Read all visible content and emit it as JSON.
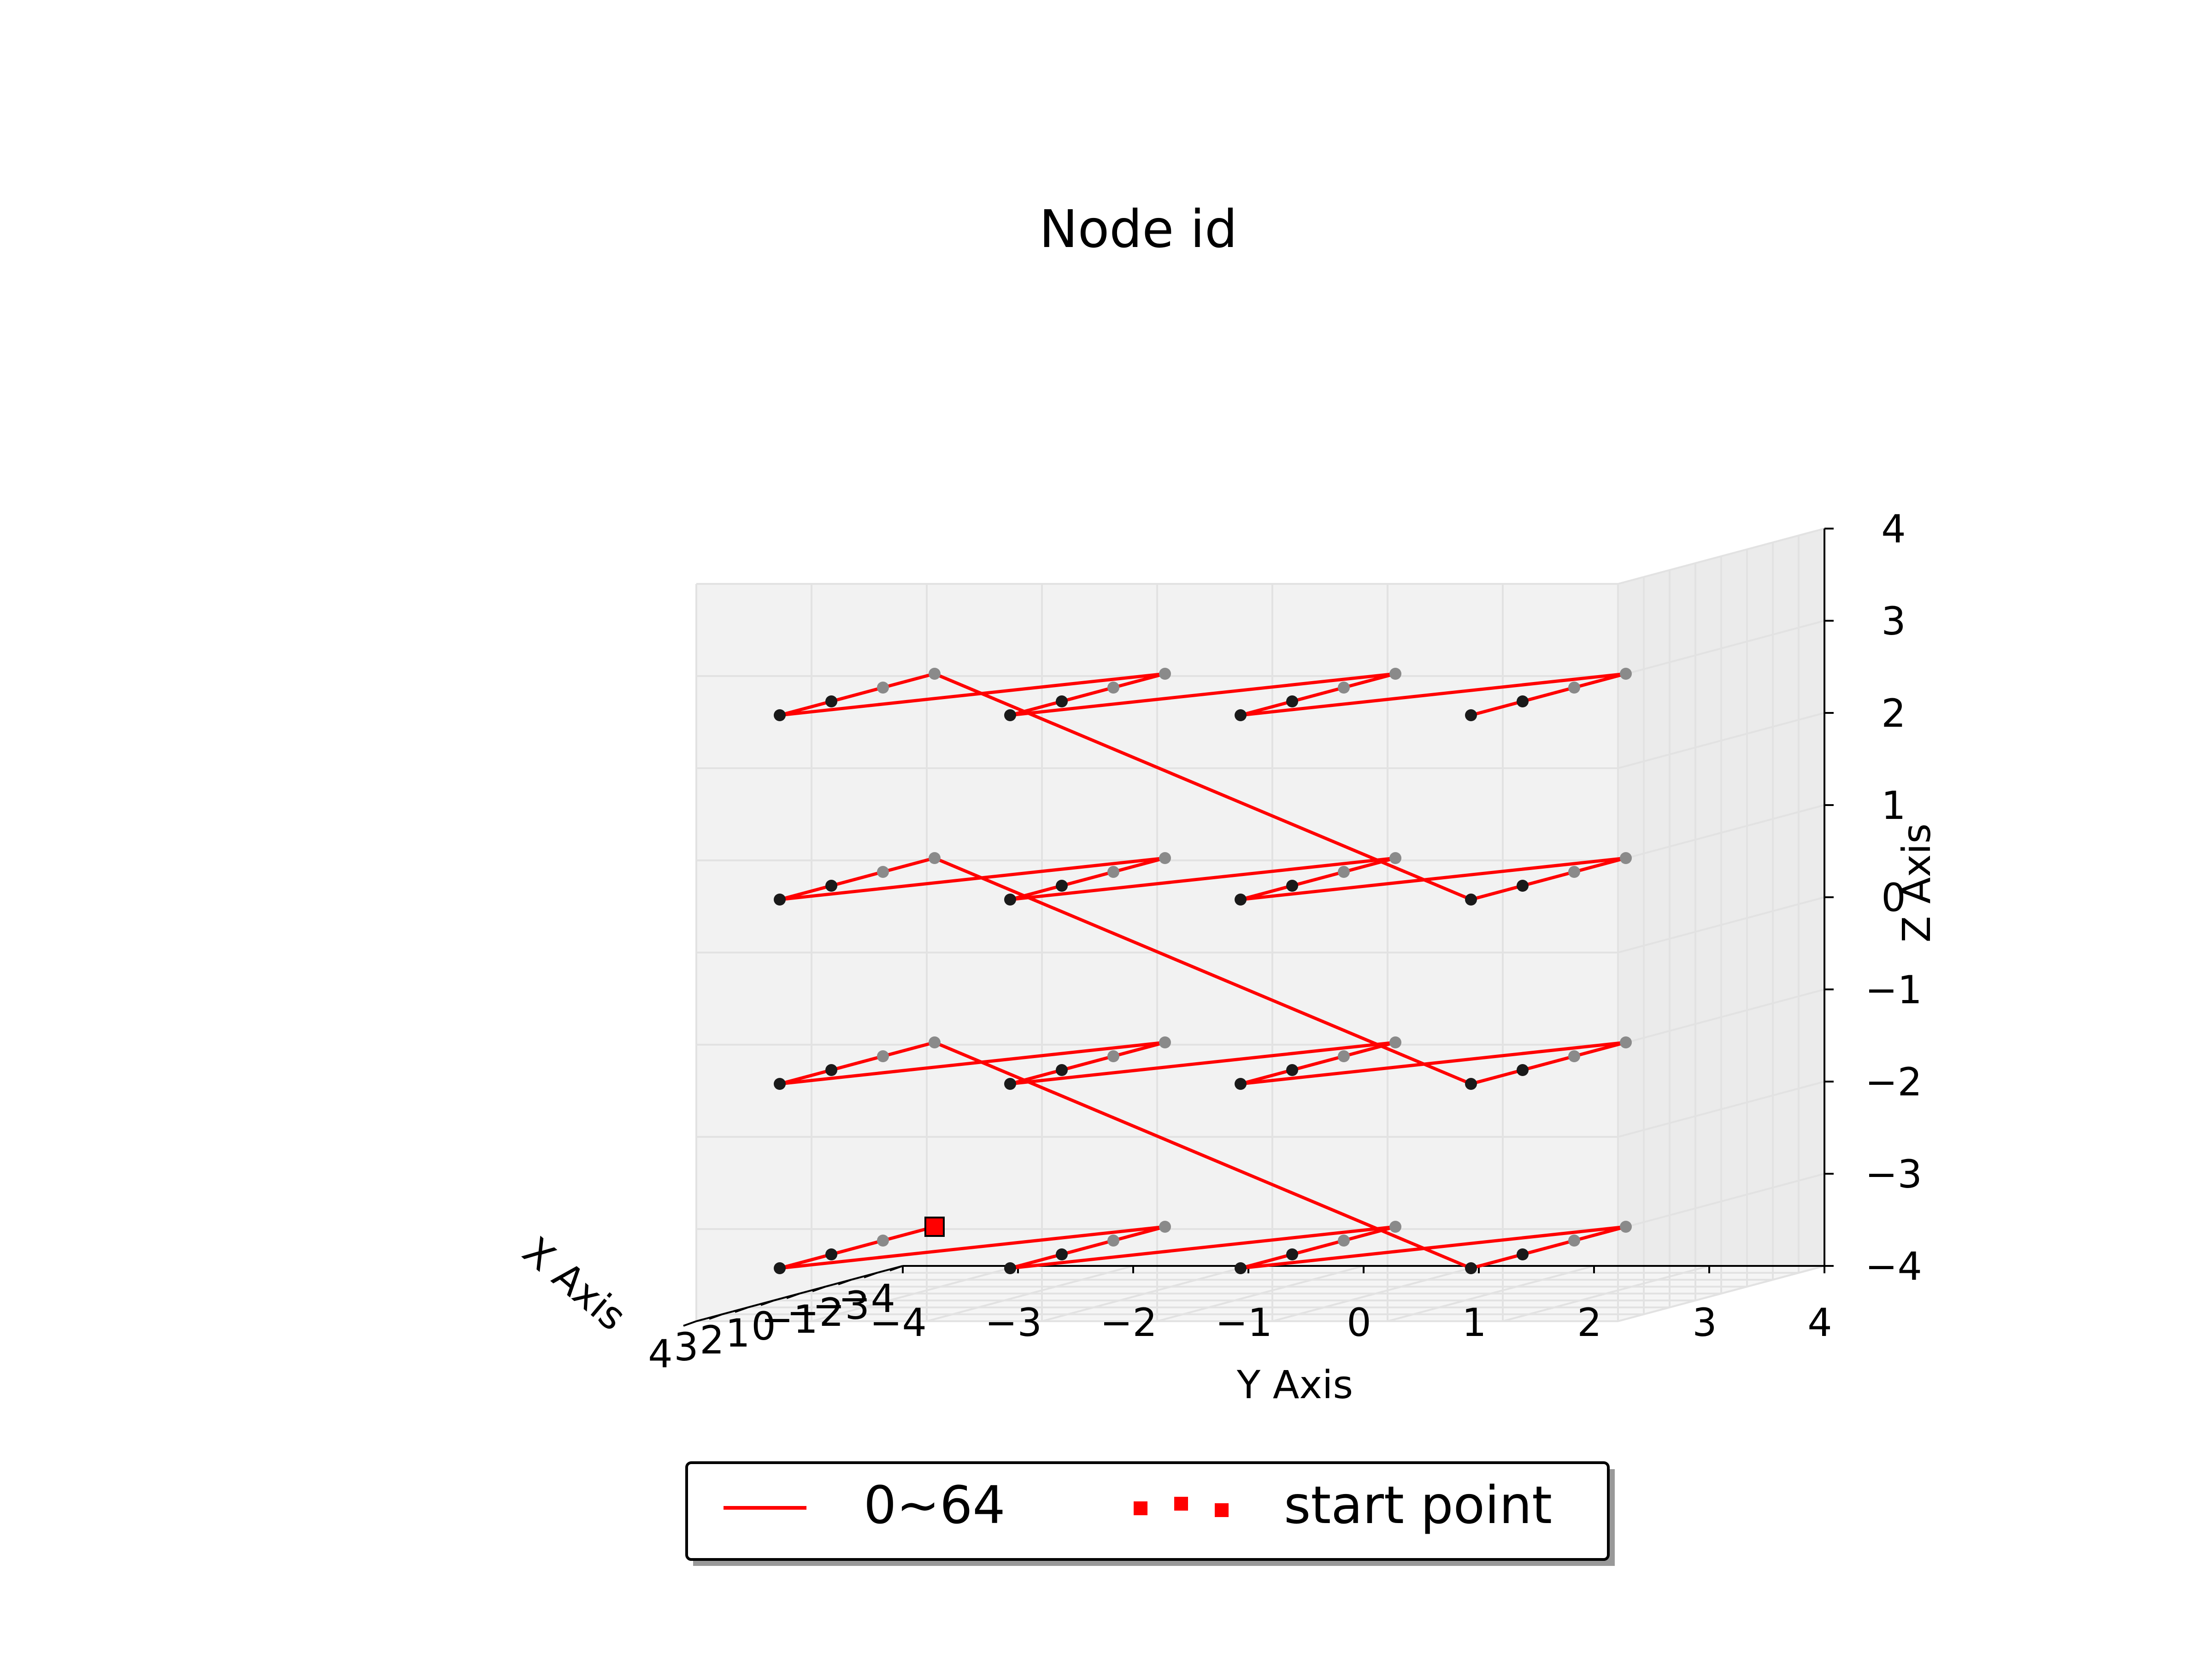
{
  "chart_data": {
    "type": "line3d",
    "title": "Node id",
    "xlabel": "X Axis",
    "ylabel": "Y Axis",
    "zlabel": "Z Axis",
    "xlim": [
      -4,
      4
    ],
    "ylim": [
      -4,
      4
    ],
    "zlim": [
      -4,
      4
    ],
    "x_ticks": [
      "−4",
      "−3",
      "−2",
      "−1",
      "0",
      "1",
      "2",
      "3",
      "4"
    ],
    "y_ticks": [
      "−4",
      "−3",
      "−2",
      "−1",
      "0",
      "1",
      "2",
      "3",
      "4"
    ],
    "z_ticks": [
      "−4",
      "−3",
      "−2",
      "−1",
      "0",
      "1",
      "2",
      "3",
      "4"
    ],
    "grid": true,
    "legend_position": "bottom-center",
    "series": [
      {
        "name": "0~64",
        "color": "#ff0000",
        "marker_colors": {
          "near": "#1a1a1a",
          "far": "#8a8a8a"
        },
        "note_order": "path runs layer by layer from the start point",
        "points": [
          [
            -3,
            -3.5,
            -3.5
          ],
          [
            -1,
            -3.5,
            -3.5
          ],
          [
            1,
            -3.5,
            -3.5
          ],
          [
            3,
            -3.5,
            -3.5
          ],
          [
            -3,
            -1.5,
            -3.5
          ],
          [
            -1,
            -1.5,
            -3.5
          ],
          [
            1,
            -1.5,
            -3.5
          ],
          [
            3,
            -1.5,
            -3.5
          ],
          [
            -3,
            0.5,
            -3.5
          ],
          [
            -1,
            0.5,
            -3.5
          ],
          [
            1,
            0.5,
            -3.5
          ],
          [
            3,
            0.5,
            -3.5
          ],
          [
            -3,
            2.5,
            -3.5
          ],
          [
            -1,
            2.5,
            -3.5
          ],
          [
            1,
            2.5,
            -3.5
          ],
          [
            3,
            2.5,
            -3.5
          ],
          [
            -3,
            -3.5,
            -1.5
          ],
          [
            -1,
            -3.5,
            -1.5
          ],
          [
            1,
            -3.5,
            -1.5
          ],
          [
            3,
            -3.5,
            -1.5
          ],
          [
            -3,
            -1.5,
            -1.5
          ],
          [
            -1,
            -1.5,
            -1.5
          ],
          [
            1,
            -1.5,
            -1.5
          ],
          [
            3,
            -1.5,
            -1.5
          ],
          [
            -3,
            0.5,
            -1.5
          ],
          [
            -1,
            0.5,
            -1.5
          ],
          [
            1,
            0.5,
            -1.5
          ],
          [
            3,
            0.5,
            -1.5
          ],
          [
            -3,
            2.5,
            -1.5
          ],
          [
            -1,
            2.5,
            -1.5
          ],
          [
            1,
            2.5,
            -1.5
          ],
          [
            3,
            2.5,
            -1.5
          ],
          [
            -3,
            -3.5,
            0.5
          ],
          [
            -1,
            -3.5,
            0.5
          ],
          [
            1,
            -3.5,
            0.5
          ],
          [
            3,
            -3.5,
            0.5
          ],
          [
            -3,
            -1.5,
            0.5
          ],
          [
            -1,
            -1.5,
            0.5
          ],
          [
            1,
            -1.5,
            0.5
          ],
          [
            3,
            -1.5,
            0.5
          ],
          [
            -3,
            0.5,
            0.5
          ],
          [
            -1,
            0.5,
            0.5
          ],
          [
            1,
            0.5,
            0.5
          ],
          [
            3,
            0.5,
            0.5
          ],
          [
            -3,
            2.5,
            0.5
          ],
          [
            -1,
            2.5,
            0.5
          ],
          [
            1,
            2.5,
            0.5
          ],
          [
            3,
            2.5,
            0.5
          ],
          [
            -3,
            -3.5,
            2.5
          ],
          [
            -1,
            -3.5,
            2.5
          ],
          [
            1,
            -3.5,
            2.5
          ],
          [
            3,
            -3.5,
            2.5
          ],
          [
            -3,
            -1.5,
            2.5
          ],
          [
            -1,
            -1.5,
            2.5
          ],
          [
            1,
            -1.5,
            2.5
          ],
          [
            3,
            -1.5,
            2.5
          ],
          [
            -3,
            0.5,
            2.5
          ],
          [
            -1,
            0.5,
            2.5
          ],
          [
            1,
            0.5,
            2.5
          ],
          [
            3,
            0.5,
            2.5
          ],
          [
            -3,
            2.5,
            2.5
          ],
          [
            -1,
            2.5,
            2.5
          ],
          [
            1,
            2.5,
            2.5
          ],
          [
            3,
            2.5,
            2.5
          ]
        ]
      },
      {
        "name": "start point",
        "color": "#ff0000",
        "marker": "square",
        "points": [
          [
            -3,
            -3.5,
            -3.5
          ]
        ]
      }
    ],
    "legend": [
      {
        "label": "0~64",
        "style": "line",
        "color": "#ff0000"
      },
      {
        "label": "start point",
        "style": "square-markers",
        "color": "#ff0000"
      }
    ]
  }
}
